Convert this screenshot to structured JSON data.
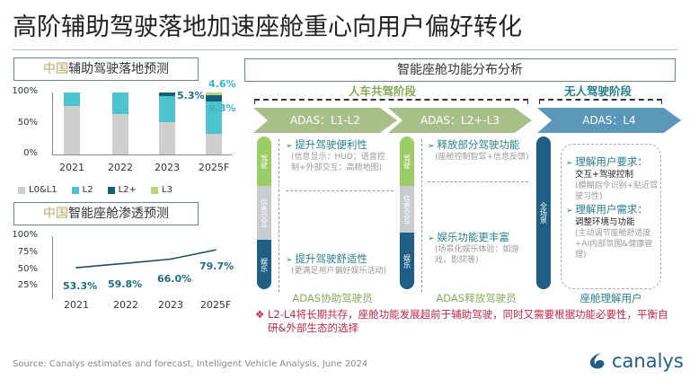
{
  "title": "高阶辅助驾驶落地加速座舱重心向用户偏好转化",
  "chart_data": [
    {
      "type": "bar",
      "title_prefix": "中国",
      "title": "辅助驾驶落地预测",
      "categories": [
        "2021",
        "2022",
        "2023",
        "2025F"
      ],
      "ylim": [
        0,
        100
      ],
      "yticks": [
        "0%",
        "50%",
        "100%"
      ],
      "series": [
        {
          "name": "L0&L1",
          "color": "#cfcfcf",
          "values": [
            78,
            65,
            52,
            33
          ]
        },
        {
          "name": "L2",
          "color": "#4cc3cf",
          "values": [
            22,
            35,
            42.7,
            53.1
          ]
        },
        {
          "name": "L2+",
          "color": "#145f7a",
          "values": [
            0,
            0,
            5.3,
            9.3
          ]
        },
        {
          "name": "L3",
          "color": "#b6d77a",
          "values": [
            0,
            0,
            0,
            4.6
          ]
        }
      ],
      "data_labels": [
        "5.3%",
        "9.3%",
        "4.6%"
      ],
      "legend": "bottom"
    },
    {
      "type": "line",
      "title_prefix": "中国",
      "title": "智能座舱渗透预测",
      "categories": [
        "2021",
        "2022",
        "2023",
        "2025F"
      ],
      "ylim": [
        0,
        100
      ],
      "yticks": [
        "25%",
        "50%",
        "75%",
        "100%"
      ],
      "values": [
        53.3,
        59.8,
        66.0,
        79.7
      ],
      "data_labels": [
        "53.3%",
        "59.8%",
        "66.0%",
        "79.7%"
      ],
      "color": "#1d4f5a"
    }
  ],
  "right": {
    "title": "智能座舱功能分布分析",
    "stage1": "人车共驾阶段",
    "stage2": "无人驾驶阶段",
    "arrows": [
      "ADAS：L1-L2",
      "ADAS：L2+-L3",
      "ADAS：L4"
    ],
    "colors": {
      "green": "#9fb87c",
      "blue": "#4f8db0",
      "pillGreen": "#9ccc65",
      "pillGray": "#c8ccd0",
      "pillBlue": "#1f5f85"
    },
    "pills": [
      "驾驶",
      "信息交互",
      "娱乐",
      "全场景"
    ],
    "col1": {
      "h1": "提升驾驶便利性",
      "s1": "(信息显示：HUD；语音控制+外部交互：高精地图)",
      "h2": "提升驾驶舒适性",
      "s2": "(更满足用户偏好娱乐活动)",
      "caption": "ADAS协助驾驶员"
    },
    "col2": {
      "h1": "释放部分驾驶功能",
      "s1": "(座舱控制智驾+信息反馈)",
      "h2": "娱乐功能更丰富",
      "s2": "(场景化娱乐体验：如游戏，影院等)",
      "caption": "ADAS释放驾驶员"
    },
    "col3": {
      "h1": "理解用户要求：",
      "b1": "交互+驾驶控制",
      "s1": "(模糊指令识别+贴近驾驶习性)",
      "h2": "理解用户需求：",
      "b2": "调整环境与功能",
      "s2": "(主动调节座舱舒适度+AI内部氛围&健康管理)",
      "caption": "座舱理解用户"
    },
    "note": "L2-L4将长期共存，座舱功能发展超前于辅助驾驶，同时又需要根据功能必要性，平衡自研&外部生态的选择"
  },
  "footer": {
    "source": "Source: Canalys estimates and forecast, Intelligent Vehicle Analysis, June 2024",
    "logo": "canalys"
  }
}
